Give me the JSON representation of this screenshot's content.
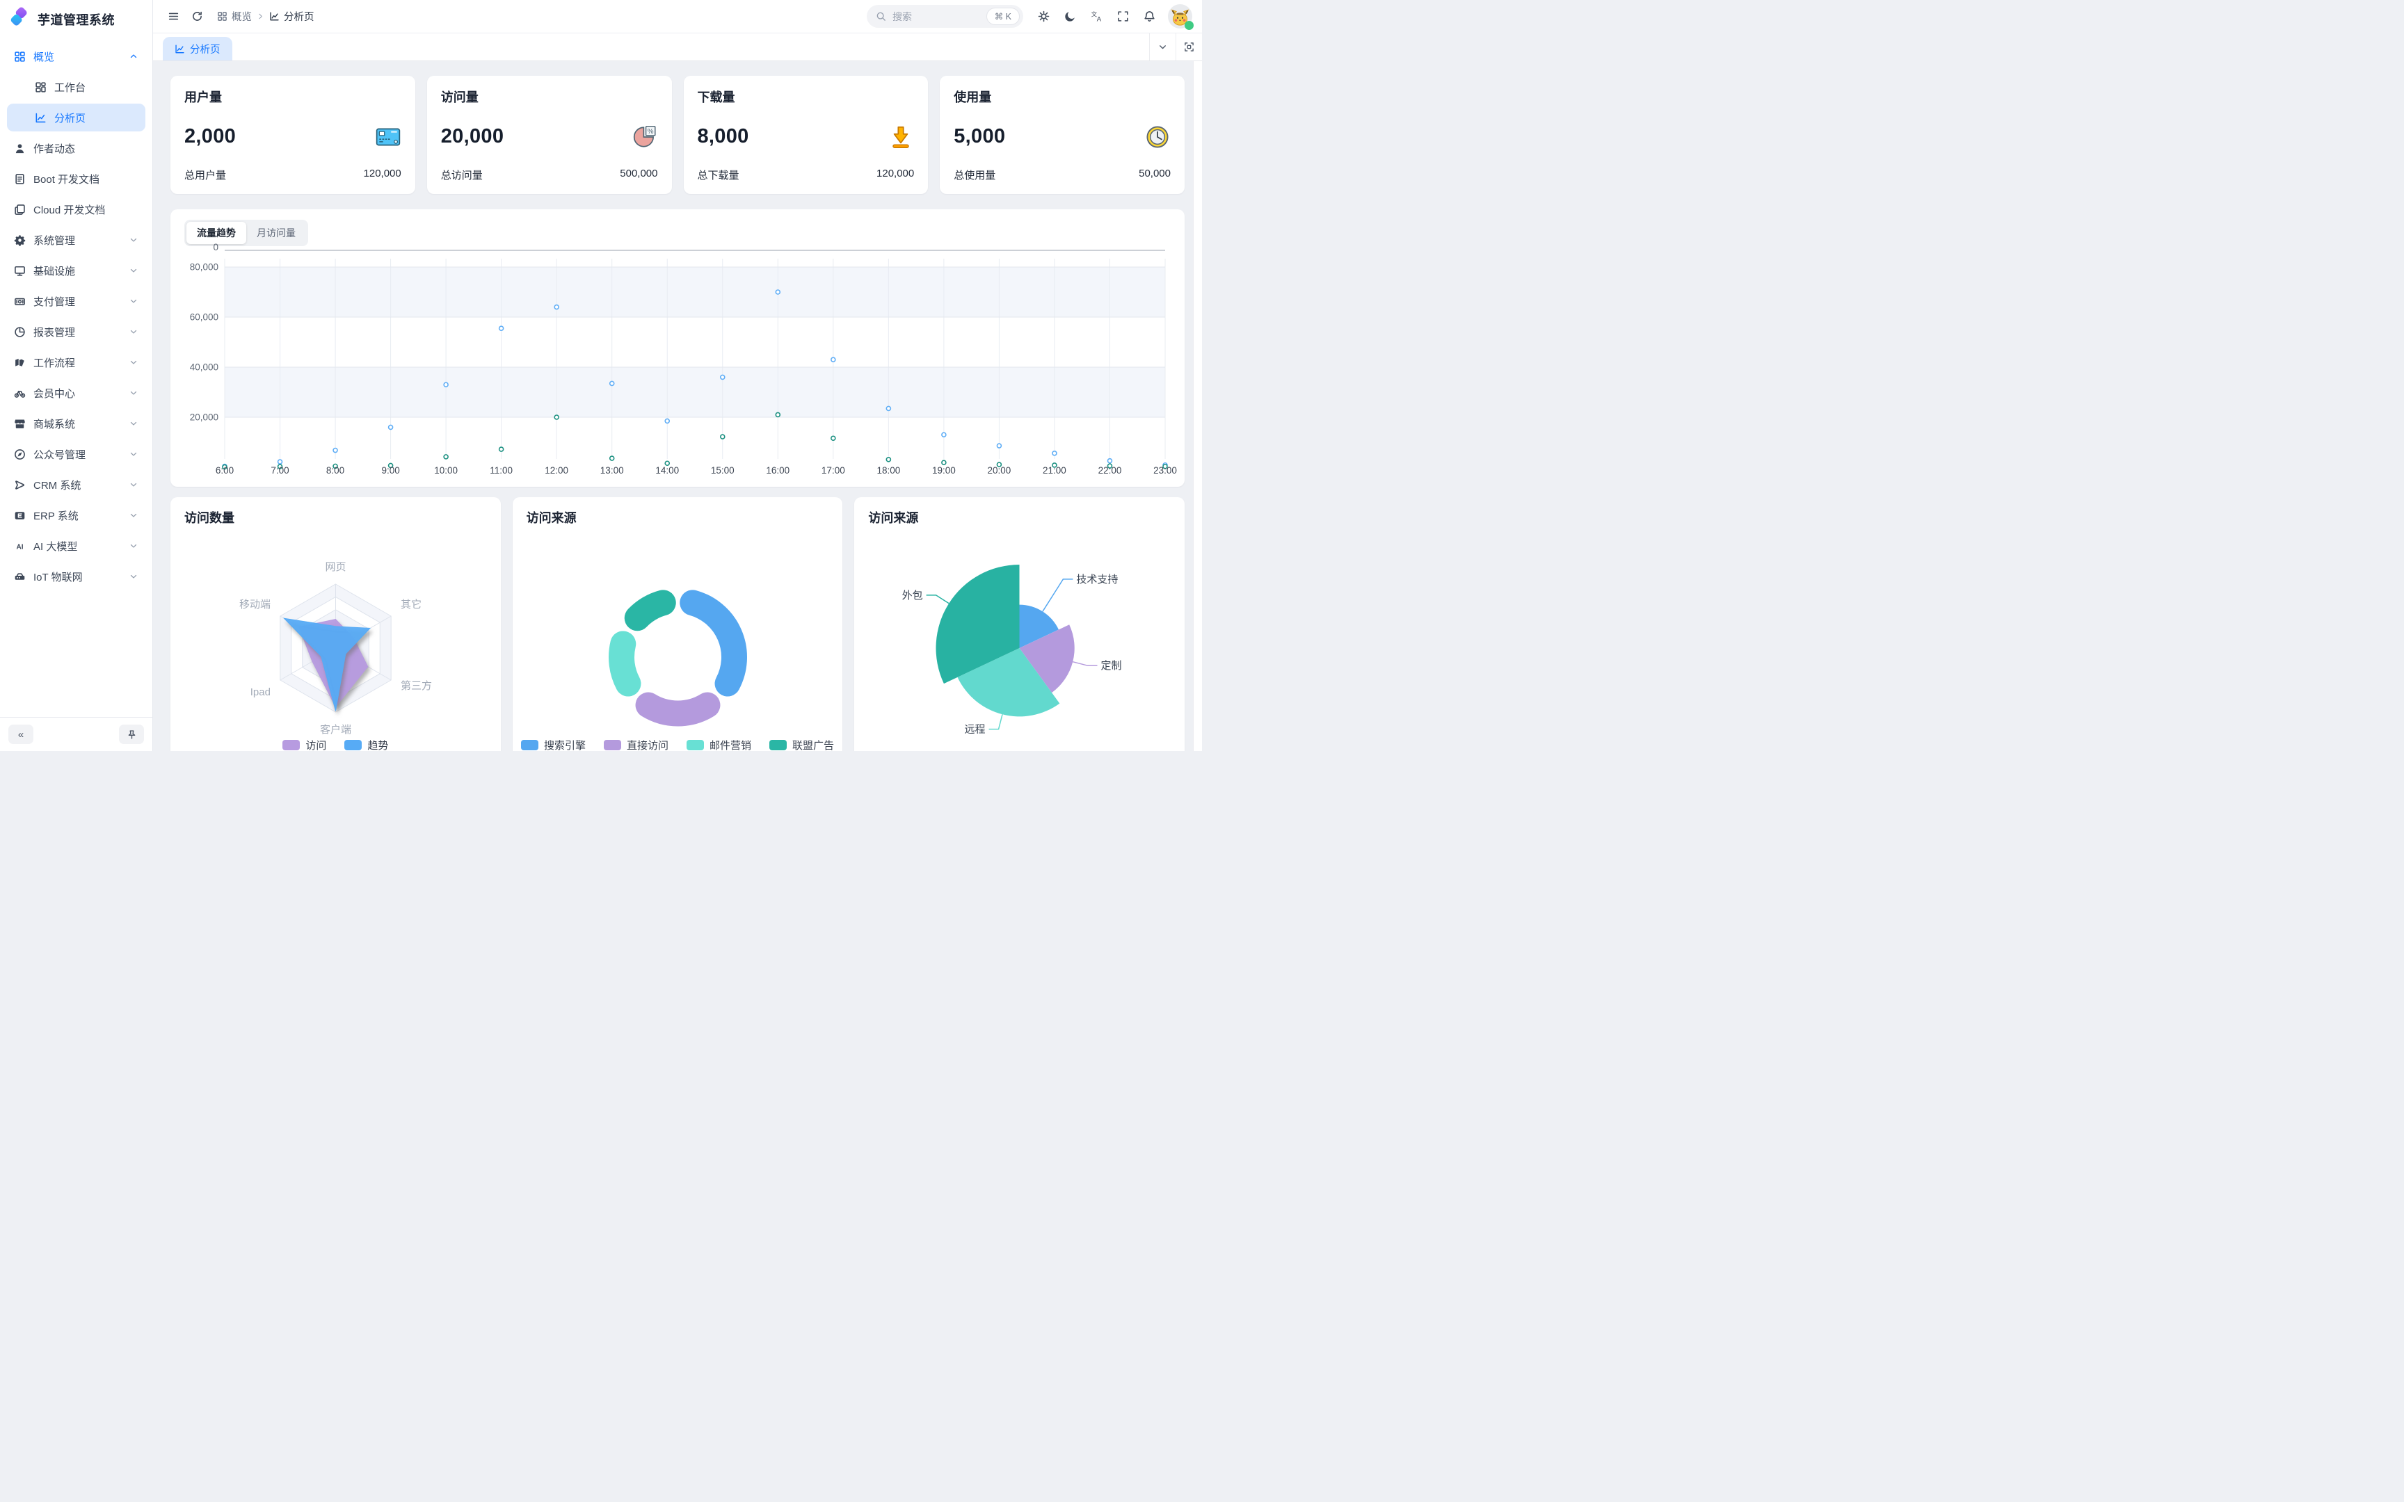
{
  "app": {
    "title": "芋道管理系统",
    "accent_color": "#1677ff"
  },
  "sidebar": {
    "menu": [
      {
        "label": "概览",
        "icon": "overview-grid-icon",
        "caret": "up",
        "active_parent": true,
        "children": [
          {
            "label": "工作台",
            "icon": "workbench-icon"
          },
          {
            "label": "分析页",
            "icon": "chart-line-icon",
            "active": true
          }
        ]
      },
      {
        "label": "作者动态",
        "icon": "user-icon"
      },
      {
        "label": "Boot 开发文档",
        "icon": "document-icon"
      },
      {
        "label": "Cloud 开发文档",
        "icon": "documents-icon"
      },
      {
        "label": "系统管理",
        "icon": "gear-icon",
        "caret": "down"
      },
      {
        "label": "基础设施",
        "icon": "monitor-icon",
        "caret": "down"
      },
      {
        "label": "支付管理",
        "icon": "payment-icon",
        "caret": "down"
      },
      {
        "label": "报表管理",
        "icon": "report-icon",
        "caret": "down"
      },
      {
        "label": "工作流程",
        "icon": "workflow-icon",
        "caret": "down"
      },
      {
        "label": "会员中心",
        "icon": "member-icon",
        "caret": "down"
      },
      {
        "label": "商城系统",
        "icon": "mall-icon",
        "caret": "down"
      },
      {
        "label": "公众号管理",
        "icon": "compass-icon",
        "caret": "down"
      },
      {
        "label": "CRM 系统",
        "icon": "crm-icon",
        "caret": "down"
      },
      {
        "label": "ERP 系统",
        "icon": "erp-icon",
        "caret": "down"
      },
      {
        "label": "AI 大模型",
        "icon": "ai-icon",
        "caret": "down"
      },
      {
        "label": "IoT 物联网",
        "icon": "iot-icon",
        "caret": "down"
      }
    ],
    "collapse_button": "«"
  },
  "header": {
    "breadcrumb": [
      {
        "label": "概览",
        "icon": "overview-grid-icon"
      },
      {
        "label": "分析页",
        "icon": "chart-line-icon"
      }
    ],
    "search": {
      "placeholder": "搜索",
      "shortcut": "⌘ K"
    },
    "actions": [
      "settings-gear-icon",
      "moon-icon",
      "translate-icon",
      "fullscreen-icon",
      "bell-icon"
    ]
  },
  "tabbar": {
    "tabs": [
      {
        "label": "分析页",
        "icon": "chart-line-icon",
        "active": true
      }
    ],
    "actions": [
      "chevron-down-icon",
      "maximize-icon"
    ]
  },
  "stat_cards": [
    {
      "title": "用户量",
      "value": "2,000",
      "icon": "credit-card-stat-icon",
      "total_label": "总用户量",
      "total_value": "120,000"
    },
    {
      "title": "访问量",
      "value": "20,000",
      "icon": "pie-percent-stat-icon",
      "total_label": "总访问量",
      "total_value": "500,000"
    },
    {
      "title": "下载量",
      "value": "8,000",
      "icon": "download-stat-icon",
      "total_label": "总下载量",
      "total_value": "120,000"
    },
    {
      "title": "使用量",
      "value": "5,000",
      "icon": "clock-stat-icon",
      "total_label": "总使用量",
      "total_value": "50,000"
    }
  ],
  "trend_card": {
    "tabs": [
      "流量趋势",
      "月访问量"
    ],
    "active_tab": 0
  },
  "chart_data": [
    {
      "type": "area",
      "title": "流量趋势",
      "x": [
        "6:00",
        "7:00",
        "8:00",
        "9:00",
        "10:00",
        "11:00",
        "12:00",
        "13:00",
        "14:00",
        "15:00",
        "16:00",
        "17:00",
        "18:00",
        "19:00",
        "20:00",
        "21:00",
        "22:00",
        "23:00"
      ],
      "ylim": [
        0,
        80000
      ],
      "yticks": [
        0,
        20000,
        40000,
        60000,
        80000
      ],
      "grid": true,
      "legend_position": "none",
      "series": [
        {
          "color": "#60aef6",
          "fill_opacity": [
            0.72,
            0.45
          ],
          "values": [
            400,
            2200,
            6800,
            16000,
            33000,
            55500,
            64000,
            33500,
            18500,
            36000,
            70000,
            43000,
            23500,
            13000,
            8600,
            5600,
            2600,
            900
          ]
        },
        {
          "color": "#1d9182",
          "fill_color": "#2f9f8f",
          "fill_opacity": [
            0.98,
            0.94
          ],
          "values": [
            150,
            300,
            450,
            700,
            4200,
            7200,
            20000,
            3600,
            1600,
            12200,
            21000,
            11600,
            3100,
            1900,
            1100,
            850,
            550,
            350
          ]
        }
      ]
    },
    {
      "type": "radar",
      "title": "访问数量",
      "axes": [
        "网页",
        "其它",
        "第三方",
        "客户端",
        "Ipad",
        "移动端"
      ],
      "max": 100,
      "levels": 5,
      "legend_position": "bottom",
      "series": [
        {
          "name": "访问",
          "color": "#b79be0",
          "values": [
            45,
            32,
            58,
            92,
            42,
            66
          ]
        },
        {
          "name": "趋势",
          "color": "#57abf5",
          "values": [
            34,
            62,
            18,
            98,
            26,
            93
          ]
        }
      ]
    },
    {
      "type": "pie",
      "variant": "donut",
      "title": "访问来源",
      "rounded": true,
      "legend_position": "bottom",
      "slices": [
        {
          "label": "搜索引擎",
          "value": 37,
          "color": "#55a7f0"
        },
        {
          "label": "直接访问",
          "value": 26,
          "color": "#b49add"
        },
        {
          "label": "邮件营销",
          "value": 20,
          "color": "#68e0d4"
        },
        {
          "label": "联盟广告",
          "value": 17,
          "color": "#2ab6a5"
        }
      ]
    },
    {
      "type": "pie",
      "variant": "rose",
      "title": "访问来源",
      "labels_position": "outside",
      "slices": [
        {
          "label": "技术支持",
          "value": 18,
          "color": "#55a7f0",
          "radius": 0.52,
          "label_dist": 55
        },
        {
          "label": "定制",
          "value": 22,
          "color": "#b49add",
          "radius": 0.66,
          "label_dist": 22
        },
        {
          "label": "远程",
          "value": 28,
          "color": "#62d9ce",
          "radius": 0.82,
          "label_dist": 22
        },
        {
          "label": "外包",
          "value": 32,
          "color": "#28b2a2",
          "radius": 1.0,
          "label_dist": 22
        }
      ]
    }
  ]
}
